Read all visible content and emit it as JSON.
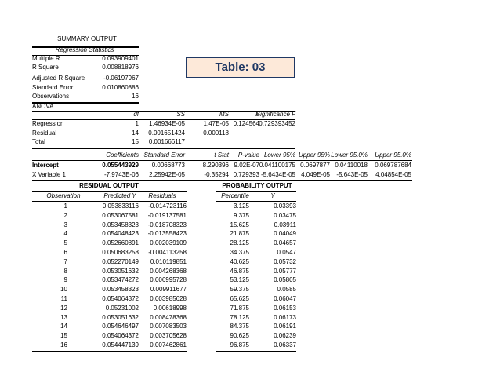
{
  "summary_title": "SUMMARY OUTPUT",
  "regstats": {
    "header": "Regression Statistics",
    "rows": [
      {
        "label": "Multiple R",
        "value": "0.093909401"
      },
      {
        "label": "R Square",
        "value": "0.008818976"
      },
      {
        "label": "Adjusted R Square",
        "value": "-0.06197967"
      },
      {
        "label": "Standard Error",
        "value": "0.010860886"
      },
      {
        "label": "Observations",
        "value": "16"
      }
    ]
  },
  "badge": "Table: 03",
  "anova": {
    "title": "ANOVA",
    "headers": [
      "df",
      "SS",
      "MS",
      "F",
      "Significance F"
    ],
    "rows": [
      [
        "Regression",
        "1",
        "1.46934E-05",
        "1.47E-05",
        "0.124564",
        "0.729393452"
      ],
      [
        "Residual",
        "14",
        "0.001651424",
        "0.000118",
        "",
        ""
      ],
      [
        "Total",
        "15",
        "0.001666117",
        "",
        "",
        ""
      ]
    ]
  },
  "coef": {
    "headers": [
      "Coefficients",
      "Standard Error",
      "t Stat",
      "P-value",
      "Lower 95%",
      "Upper 95%",
      "Lower 95.0%",
      "Upper 95.0%"
    ],
    "rows": [
      [
        "Intercept",
        "0.055443929",
        "0.00668773",
        "8.290396",
        "9.02E-07",
        "0.041100175",
        "0.0697877",
        "0.04110018",
        "0.069787684"
      ],
      [
        "X Variable 1",
        "-7.9743E-06",
        "2.25942E-05",
        "-0.35294",
        "0.729393",
        "-5.6434E-05",
        "4.049E-05",
        "-5.643E-05",
        "4.04854E-05"
      ]
    ]
  },
  "residual": {
    "title": "RESIDUAL OUTPUT",
    "headers": [
      "Observation",
      "Predicted Y",
      "Residuals"
    ],
    "rows": [
      [
        "1",
        "0.053833116",
        "-0.014723116"
      ],
      [
        "2",
        "0.053067581",
        "-0.019137581"
      ],
      [
        "3",
        "0.053458323",
        "-0.018708323"
      ],
      [
        "4",
        "0.054048423",
        "-0.013558423"
      ],
      [
        "5",
        "0.052660891",
        "0.002039109"
      ],
      [
        "6",
        "0.050683258",
        "-0.004113258"
      ],
      [
        "7",
        "0.052270149",
        "0.010119851"
      ],
      [
        "8",
        "0.053051632",
        "0.004268368"
      ],
      [
        "9",
        "0.053474272",
        "0.006995728"
      ],
      [
        "10",
        "0.053458323",
        "0.009911677"
      ],
      [
        "11",
        "0.054064372",
        "0.003985628"
      ],
      [
        "12",
        "0.05231002",
        "0.00618998"
      ],
      [
        "13",
        "0.053051632",
        "0.008478368"
      ],
      [
        "14",
        "0.054646497",
        "0.007083503"
      ],
      [
        "15",
        "0.054064372",
        "0.003705628"
      ],
      [
        "16",
        "0.054447139",
        "0.007462861"
      ]
    ]
  },
  "probability": {
    "title": "PROBABILITY OUTPUT",
    "headers": [
      "Percentile",
      "Y"
    ],
    "rows": [
      [
        "3.125",
        "0.03393"
      ],
      [
        "9.375",
        "0.03475"
      ],
      [
        "15.625",
        "0.03911"
      ],
      [
        "21.875",
        "0.04049"
      ],
      [
        "28.125",
        "0.04657"
      ],
      [
        "34.375",
        "0.0547"
      ],
      [
        "40.625",
        "0.05732"
      ],
      [
        "46.875",
        "0.05777"
      ],
      [
        "53.125",
        "0.05805"
      ],
      [
        "59.375",
        "0.0585"
      ],
      [
        "65.625",
        "0.06047"
      ],
      [
        "71.875",
        "0.06153"
      ],
      [
        "78.125",
        "0.06173"
      ],
      [
        "84.375",
        "0.06191"
      ],
      [
        "90.625",
        "0.06239"
      ],
      [
        "96.875",
        "0.06337"
      ]
    ]
  }
}
